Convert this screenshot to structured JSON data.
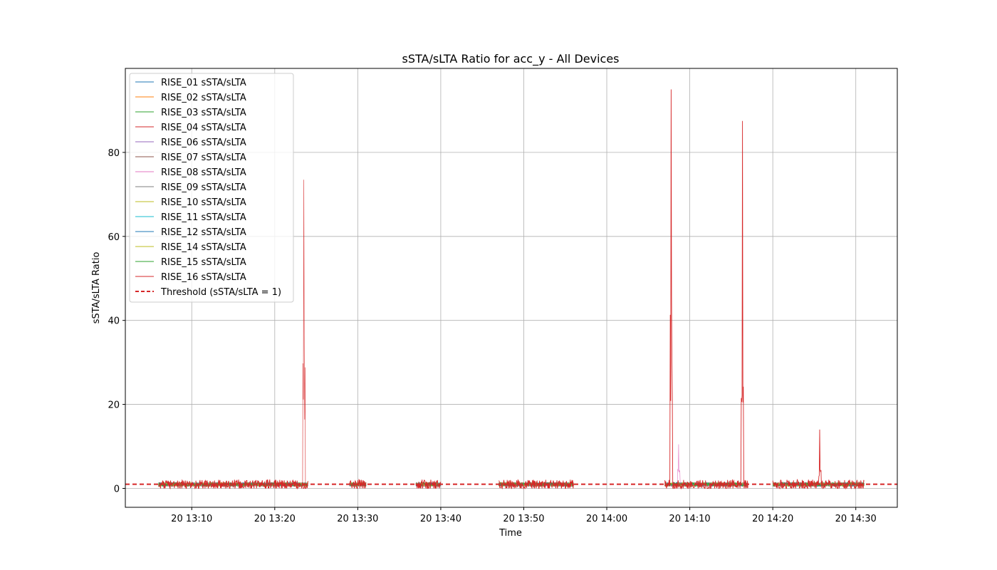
{
  "chart_data": {
    "type": "line",
    "title": "sSTA/sLTA Ratio for acc_y - All Devices",
    "xlabel": "Time",
    "ylabel": "sSTA/sLTA Ratio",
    "x_range": [
      "20 13:02",
      "20 14:35"
    ],
    "ylim": [
      -4.5,
      100
    ],
    "x_ticks": [
      "20 13:10",
      "20 13:20",
      "20 13:30",
      "20 13:40",
      "20 13:50",
      "20 14:00",
      "20 14:10",
      "20 14:20",
      "20 14:30"
    ],
    "y_ticks": [
      0,
      20,
      40,
      60,
      80
    ],
    "grid": true,
    "legend_position": "upper-left",
    "threshold": {
      "name": "Threshold (sSTA/sLTA = 1)",
      "value": 1,
      "color": "#d62728",
      "style": "dashed"
    },
    "segments": [
      [
        "20 13:06",
        "20 13:24"
      ],
      [
        "20 13:29",
        "20 13:31"
      ],
      [
        "20 13:37",
        "20 13:40"
      ],
      [
        "20 13:47",
        "20 13:56"
      ],
      [
        "20 14:07",
        "20 14:17"
      ],
      [
        "20 14:20",
        "20 14:31"
      ]
    ],
    "series": [
      {
        "name": "RISE_01 sSTA/sLTA",
        "color": "#1f77b4",
        "level": 1.0
      },
      {
        "name": "RISE_02 sSTA/sLTA",
        "color": "#ff7f0e",
        "level": 1.0
      },
      {
        "name": "RISE_03 sSTA/sLTA",
        "color": "#2ca02c",
        "level": 1.0
      },
      {
        "name": "RISE_04 sSTA/sLTA",
        "color": "#d62728",
        "level": 1.0,
        "peaks": [
          [
            "20 13:23:30",
            73.5
          ]
        ]
      },
      {
        "name": "RISE_06 sSTA/sLTA",
        "color": "#9467bd",
        "level": 1.0
      },
      {
        "name": "RISE_07 sSTA/sLTA",
        "color": "#8c564b",
        "level": 1.0
      },
      {
        "name": "RISE_08 sSTA/sLTA",
        "color": "#e377c2",
        "level": 1.0,
        "peaks": [
          [
            "20 14:08:40",
            10.5
          ]
        ]
      },
      {
        "name": "RISE_09 sSTA/sLTA",
        "color": "#7f7f7f",
        "level": 1.0
      },
      {
        "name": "RISE_10 sSTA/sLTA",
        "color": "#bcbd22",
        "level": 1.0
      },
      {
        "name": "RISE_11 sSTA/sLTA",
        "color": "#17becf",
        "level": 1.0
      },
      {
        "name": "RISE_12 sSTA/sLTA",
        "color": "#1f77b4",
        "level": 1.0
      },
      {
        "name": "RISE_14 sSTA/sLTA",
        "color": "#bcbd22",
        "level": 1.0
      },
      {
        "name": "RISE_15 sSTA/sLTA",
        "color": "#2ca02c",
        "level": 1.0
      },
      {
        "name": "RISE_16 sSTA/sLTA",
        "color": "#d62728",
        "level": 1.0,
        "peaks": [
          [
            "20 14:07:45",
            95
          ],
          [
            "20 14:16:20",
            87.5
          ],
          [
            "20 14:25:40",
            14
          ]
        ]
      }
    ]
  }
}
